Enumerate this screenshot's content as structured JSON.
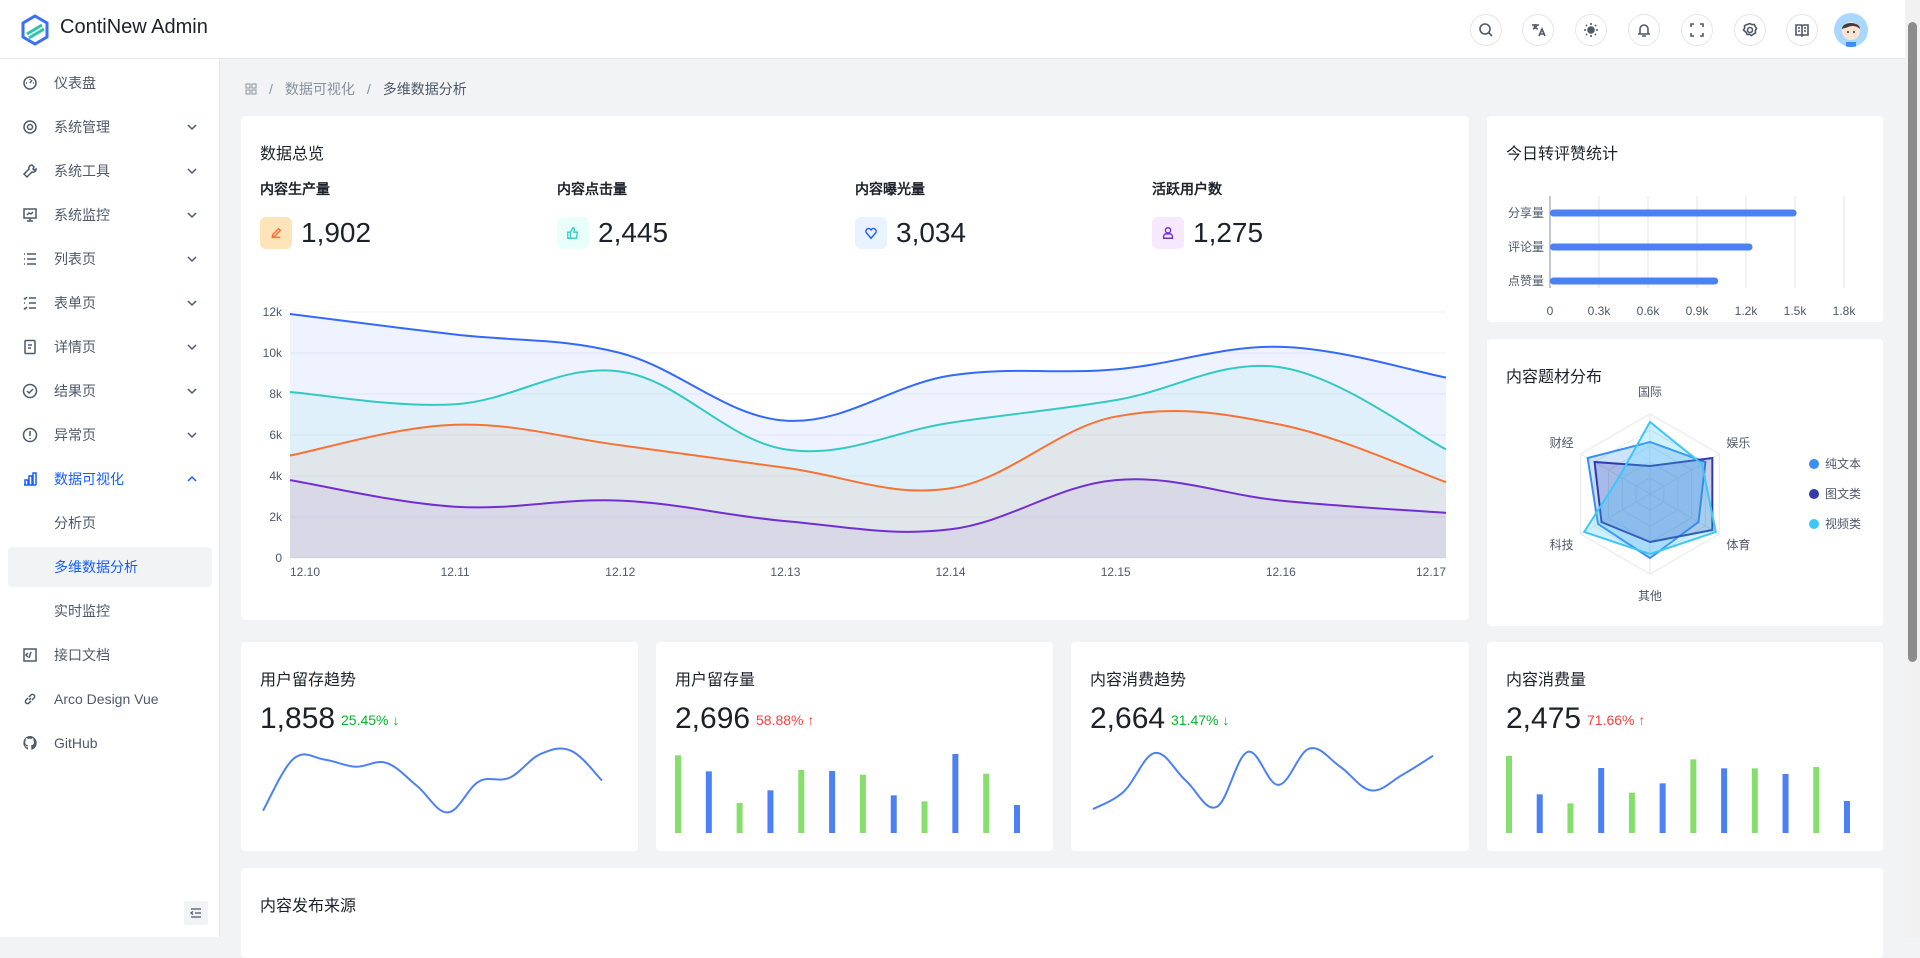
{
  "header": {
    "app_title": "ContiNew Admin",
    "icons": [
      "search-icon",
      "translate-icon",
      "theme-sun-icon",
      "bell-icon",
      "fullscreen-icon",
      "settings-icon",
      "docs-book-icon"
    ]
  },
  "sidebar": {
    "items": [
      {
        "label": "仪表盘",
        "icon": "dashboard-icon",
        "chevron": false
      },
      {
        "label": "系统管理",
        "icon": "gear-icon",
        "chevron": true
      },
      {
        "label": "系统工具",
        "icon": "wrench-icon",
        "chevron": true
      },
      {
        "label": "系统监控",
        "icon": "monitor-icon",
        "chevron": true
      },
      {
        "label": "列表页",
        "icon": "list-icon",
        "chevron": true
      },
      {
        "label": "表单页",
        "icon": "form-icon",
        "chevron": true
      },
      {
        "label": "详情页",
        "icon": "file-icon",
        "chevron": true
      },
      {
        "label": "结果页",
        "icon": "check-circle-icon",
        "chevron": true
      },
      {
        "label": "异常页",
        "icon": "exclamation-circle-icon",
        "chevron": true
      },
      {
        "label": "数据可视化",
        "icon": "bar-chart-icon",
        "chevron": true,
        "expanded": true,
        "active": true
      }
    ],
    "subitems": [
      {
        "label": "分析页"
      },
      {
        "label": "多维数据分析",
        "selected": true
      },
      {
        "label": "实时监控"
      }
    ],
    "bottom_items": [
      {
        "label": "接口文档",
        "icon": "code-icon"
      },
      {
        "label": "Arco Design Vue",
        "icon": "link-icon"
      },
      {
        "label": "GitHub",
        "icon": "github-icon"
      }
    ]
  },
  "breadcrumb": [
    "数据可视化",
    "多维数据分析"
  ],
  "overview": {
    "title": "数据总览",
    "stats": [
      {
        "label": "内容生产量",
        "value": "1,902",
        "icon": "edit-icon",
        "color": "#f77234",
        "bg": "#ffe4ba"
      },
      {
        "label": "内容点击量",
        "value": "2,445",
        "icon": "thumb-up-icon",
        "color": "#33d1c9",
        "bg": "#e8fffb"
      },
      {
        "label": "内容曝光量",
        "value": "3,034",
        "icon": "heart-icon",
        "color": "#165dff",
        "bg": "#e8f3ff"
      },
      {
        "label": "活跃用户数",
        "value": "1,275",
        "icon": "user-icon",
        "color": "#722ed1",
        "bg": "#f5e8ff"
      }
    ]
  },
  "chart_data": [
    {
      "type": "line",
      "categories": [
        "12.10",
        "12.11",
        "12.12",
        "12.13",
        "12.14",
        "12.15",
        "12.16",
        "12.17"
      ],
      "yticks": [
        "0",
        "2k",
        "4k",
        "6k",
        "8k",
        "10k",
        "12k"
      ],
      "ylim": [
        0,
        12000
      ],
      "grid": true,
      "series": [
        {
          "color": "#3469ff",
          "values": [
            11900,
            10900,
            10000,
            6700,
            8900,
            9200,
            10300,
            8800
          ]
        },
        {
          "color": "#33c9c2",
          "values": [
            8100,
            7500,
            9100,
            5300,
            6600,
            7700,
            9300,
            5300
          ]
        },
        {
          "color": "#f77234",
          "values": [
            5000,
            6500,
            5500,
            4400,
            3400,
            6900,
            6500,
            3700
          ]
        },
        {
          "color": "#722ed1",
          "values": [
            3800,
            2500,
            2800,
            1800,
            1400,
            3800,
            2800,
            2200
          ]
        }
      ]
    },
    {
      "type": "bar",
      "title": "今日转评赞统计",
      "orientation": "horizontal",
      "categories": [
        "分享量",
        "评论量",
        "点赞量"
      ],
      "values": [
        1510,
        1240,
        1030
      ],
      "xticks": [
        "0",
        "0.3k",
        "0.6k",
        "0.9k",
        "1.2k",
        "1.5k",
        "1.8k"
      ],
      "xlim": [
        0,
        1800
      ],
      "color": "#4c80f5"
    },
    {
      "type": "radar",
      "title": "内容题材分布",
      "indicators": [
        "国际",
        "娱乐",
        "体育",
        "其他",
        "科技",
        "财经"
      ],
      "max": 100,
      "legend": "right",
      "series": [
        {
          "name": "纯文本",
          "color": "#3a8ef5",
          "values": [
            65,
            80,
            70,
            80,
            75,
            90
          ]
        },
        {
          "name": "图文类",
          "color": "#313ca9",
          "values": [
            35,
            90,
            90,
            60,
            70,
            80
          ]
        },
        {
          "name": "视频类",
          "color": "#3dc7f7",
          "values": [
            90,
            75,
            95,
            75,
            95,
            44
          ]
        }
      ]
    },
    {
      "type": "line",
      "title": "用户留存趋势",
      "values": [
        35,
        130,
        128,
        115,
        122,
        80,
        32,
        88,
        95,
        138,
        144,
        90
      ],
      "color": "#4c80f5"
    },
    {
      "type": "bar",
      "title": "用户留存量",
      "values": [
        233,
        185,
        90,
        128,
        189,
        186,
        175,
        113,
        95,
        237,
        178,
        84
      ],
      "colors": [
        "#86df6c",
        "#4c80f5"
      ]
    },
    {
      "type": "line",
      "title": "内容消费趋势",
      "values": [
        38,
        70,
        140,
        90,
        42,
        142,
        82,
        148,
        115,
        72,
        100,
        135
      ],
      "color": "#4c80f5"
    },
    {
      "type": "bar",
      "title": "内容消费量",
      "values": [
        231,
        116,
        89,
        195,
        121,
        149,
        221,
        194,
        194,
        177,
        198,
        96
      ],
      "colors": [
        "#86df6c",
        "#4c80f5"
      ]
    }
  ],
  "minis": [
    {
      "title": "用户留存趋势",
      "value": "1,858",
      "pct": "25.45%",
      "dir": "down"
    },
    {
      "title": "用户留存量",
      "value": "2,696",
      "pct": "58.88%",
      "dir": "up"
    },
    {
      "title": "内容消费趋势",
      "value": "2,664",
      "pct": "31.47%",
      "dir": "down"
    },
    {
      "title": "内容消费量",
      "value": "2,475",
      "pct": "71.66%",
      "dir": "up"
    }
  ],
  "source": {
    "title": "内容发布来源"
  },
  "colors": {
    "primary": "#165dff",
    "up": "#f53f3f",
    "down": "#00b42a"
  }
}
